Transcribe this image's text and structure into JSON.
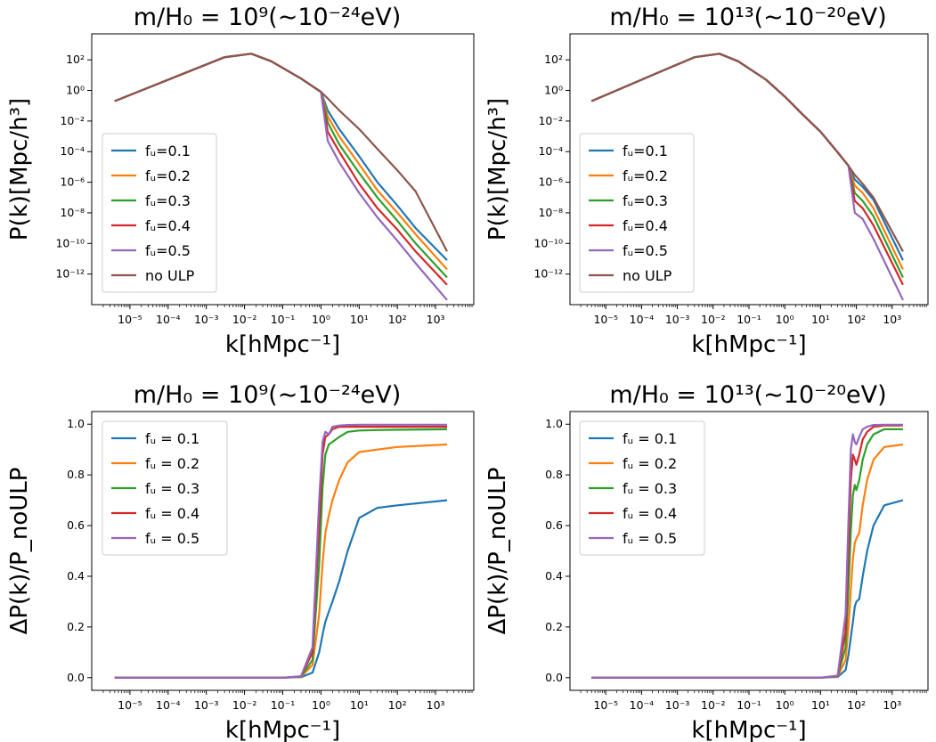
{
  "colors": {
    "fu_0.1": "#1f77b4",
    "fu_0.2": "#ff7f0e",
    "fu_0.3": "#2ca02c",
    "fu_0.4": "#d62728",
    "fu_0.5": "#9467bd",
    "no_ulp": "#8c564b"
  },
  "chart_data": [
    {
      "type": "line",
      "title": "m/H₀ = 10⁹(∼10⁻²⁴eV)",
      "xlabel": "k[hMpc⁻¹]",
      "ylabel": "P(k)[Mpc/h³]",
      "xscale": "log",
      "yscale": "log",
      "xlim": [
        1e-06,
        10000
      ],
      "ylim": [
        1e-14,
        5000
      ],
      "xticks": [
        "10⁻⁵",
        "10⁻⁴",
        "10⁻³",
        "10⁻²",
        "10⁻¹",
        "10⁰",
        "10¹",
        "10²",
        "10³"
      ],
      "yticks": [
        "10⁻¹²",
        "10⁻¹⁰",
        "10⁻⁸",
        "10⁻⁶",
        "10⁻⁴",
        "10⁻²",
        "10⁰",
        "10²"
      ],
      "legend_position": "center-left",
      "x": [
        4e-06,
        3e-05,
        0.0003,
        0.003,
        0.015,
        0.05,
        0.3,
        1,
        1.5,
        3,
        10,
        30,
        100,
        300,
        2000
      ],
      "series": [
        {
          "name": "fᵤ=0.1",
          "color_key": "fu_0.1",
          "values": [
            0.2,
            1.5,
            15,
            150,
            250,
            80,
            6,
            0.8,
            0.05,
            0.003,
            5e-05,
            1e-06,
            3e-08,
            1e-09,
            8e-12
          ]
        },
        {
          "name": "fᵤ=0.2",
          "color_key": "fu_0.2",
          "values": [
            0.2,
            1.5,
            15,
            150,
            250,
            80,
            6,
            0.8,
            0.02,
            0.001,
            1.5e-05,
            3e-07,
            1e-08,
            4e-10,
            2e-12
          ]
        },
        {
          "name": "fᵤ=0.3",
          "color_key": "fu_0.3",
          "values": [
            0.2,
            1.5,
            15,
            150,
            250,
            80,
            6,
            0.8,
            0.008,
            0.0003,
            4e-06,
            1e-07,
            3e-09,
            1e-10,
            6e-13
          ]
        },
        {
          "name": "fᵤ=0.4",
          "color_key": "fu_0.4",
          "values": [
            0.2,
            1.5,
            15,
            150,
            250,
            80,
            6,
            0.8,
            0.002,
            0.0001,
            8e-07,
            2e-08,
            8e-10,
            3e-11,
            2e-13
          ]
        },
        {
          "name": "fᵤ=0.5",
          "color_key": "fu_0.5",
          "values": [
            0.2,
            1.5,
            15,
            150,
            250,
            80,
            6,
            0.8,
            0.0005,
            2e-05,
            2e-07,
            5e-09,
            1.5e-10,
            5e-12,
            2e-14
          ]
        },
        {
          "name": "no ULP",
          "color_key": "no_ulp",
          "values": [
            0.2,
            1.5,
            15,
            150,
            250,
            80,
            6,
            0.8,
            0.3,
            0.05,
            0.003,
            0.00015,
            6e-06,
            2.5e-07,
            3e-11
          ]
        }
      ]
    },
    {
      "type": "line",
      "title": "m/H₀ = 10¹³(∼10⁻²⁰eV)",
      "xlabel": "k[hMpc⁻¹]",
      "ylabel": "P(k)[Mpc/h³]",
      "xscale": "log",
      "yscale": "log",
      "xlim": [
        1e-06,
        10000
      ],
      "ylim": [
        1e-14,
        5000
      ],
      "xticks": [
        "10⁻⁵",
        "10⁻⁴",
        "10⁻³",
        "10⁻²",
        "10⁻¹",
        "10⁰",
        "10¹",
        "10²",
        "10³"
      ],
      "yticks": [
        "10⁻¹²",
        "10⁻¹⁰",
        "10⁻⁸",
        "10⁻⁶",
        "10⁻⁴",
        "10⁻²",
        "10⁰",
        "10²"
      ],
      "legend_position": "center-left",
      "x": [
        4e-06,
        3e-05,
        0.0003,
        0.003,
        0.015,
        0.05,
        0.3,
        1,
        3,
        10,
        30,
        60,
        90,
        150,
        300,
        2000
      ],
      "series": [
        {
          "name": "fᵤ=0.1",
          "color_key": "fu_0.1",
          "values": [
            0.2,
            1.5,
            15,
            150,
            250,
            80,
            5,
            0.4,
            0.03,
            0.002,
            9e-05,
            1.2e-05,
            1.5e-06,
            5e-07,
            7e-08,
            8e-12
          ]
        },
        {
          "name": "fᵤ=0.2",
          "color_key": "fu_0.2",
          "values": [
            0.2,
            1.5,
            15,
            150,
            250,
            80,
            5,
            0.4,
            0.03,
            0.002,
            9e-05,
            1.2e-05,
            6e-07,
            2e-07,
            2e-08,
            2e-12
          ]
        },
        {
          "name": "fᵤ=0.3",
          "color_key": "fu_0.3",
          "values": [
            0.2,
            1.5,
            15,
            150,
            250,
            80,
            5,
            0.4,
            0.03,
            0.002,
            9e-05,
            1.2e-05,
            2e-07,
            6e-08,
            6e-09,
            6e-13
          ]
        },
        {
          "name": "fᵤ=0.4",
          "color_key": "fu_0.4",
          "values": [
            0.2,
            1.5,
            15,
            150,
            250,
            80,
            5,
            0.4,
            0.03,
            0.002,
            9e-05,
            1.2e-05,
            6e-08,
            2e-08,
            1.5e-09,
            2e-13
          ]
        },
        {
          "name": "fᵤ=0.5",
          "color_key": "fu_0.5",
          "values": [
            0.2,
            1.5,
            15,
            150,
            250,
            80,
            5,
            0.4,
            0.03,
            0.002,
            9e-05,
            1.2e-05,
            1e-08,
            4e-09,
            2e-10,
            2e-14
          ]
        },
        {
          "name": "no ULP",
          "color_key": "no_ulp",
          "values": [
            0.2,
            1.5,
            15,
            150,
            250,
            80,
            5,
            0.4,
            0.03,
            0.002,
            9e-05,
            1.2e-05,
            3e-06,
            8e-07,
            1e-07,
            3e-11
          ]
        }
      ]
    },
    {
      "type": "line",
      "title": "m/H₀ = 10⁹(∼10⁻²⁴eV)",
      "xlabel": "k[hMpc⁻¹]",
      "ylabel": "ΔP(k)/P_noULP",
      "xscale": "log",
      "yscale": "linear",
      "xlim": [
        1e-06,
        10000
      ],
      "ylim": [
        -0.05,
        1.05
      ],
      "xticks": [
        "10⁻⁵",
        "10⁻⁴",
        "10⁻³",
        "10⁻²",
        "10⁻¹",
        "10⁰",
        "10¹",
        "10²",
        "10³"
      ],
      "yticks": [
        "0.0",
        "0.2",
        "0.4",
        "0.6",
        "0.8",
        "1.0"
      ],
      "legend_position": "upper-left",
      "x": [
        4e-06,
        0.01,
        0.1,
        0.3,
        0.6,
        0.9,
        1.1,
        1.3,
        1.6,
        2,
        3,
        5,
        10,
        30,
        100,
        2000
      ],
      "series": [
        {
          "name": "fᵤ = 0.1",
          "color_key": "fu_0.1",
          "values": [
            0,
            0,
            0,
            0.002,
            0.02,
            0.1,
            0.17,
            0.22,
            0.26,
            0.3,
            0.38,
            0.5,
            0.63,
            0.67,
            0.68,
            0.7
          ]
        },
        {
          "name": "fᵤ = 0.2",
          "color_key": "fu_0.2",
          "values": [
            0,
            0,
            0,
            0.003,
            0.05,
            0.25,
            0.45,
            0.57,
            0.64,
            0.7,
            0.78,
            0.85,
            0.89,
            0.9,
            0.91,
            0.92
          ]
        },
        {
          "name": "fᵤ = 0.3",
          "color_key": "fu_0.3",
          "values": [
            0,
            0,
            0,
            0.004,
            0.07,
            0.45,
            0.75,
            0.88,
            0.92,
            0.93,
            0.95,
            0.97,
            0.975,
            0.977,
            0.978,
            0.98
          ]
        },
        {
          "name": "fᵤ = 0.4",
          "color_key": "fu_0.4",
          "values": [
            0,
            0,
            0,
            0.005,
            0.1,
            0.6,
            0.88,
            0.95,
            0.96,
            0.98,
            0.99,
            0.99,
            0.99,
            0.99,
            0.99,
            0.99
          ]
        },
        {
          "name": "fᵤ = 0.5",
          "color_key": "fu_0.5",
          "values": [
            0,
            0,
            0,
            0.006,
            0.12,
            0.7,
            0.93,
            0.97,
            0.96,
            0.99,
            0.995,
            0.997,
            0.998,
            0.998,
            0.998,
            0.998
          ]
        }
      ]
    },
    {
      "type": "line",
      "title": "m/H₀ = 10¹³(∼10⁻²⁰eV)",
      "xlabel": "k[hMpc⁻¹]",
      "ylabel": "ΔP(k)/P_noULP",
      "xscale": "log",
      "yscale": "linear",
      "xlim": [
        1e-06,
        10000
      ],
      "ylim": [
        -0.05,
        1.05
      ],
      "xticks": [
        "10⁻⁵",
        "10⁻⁴",
        "10⁻³",
        "10⁻²",
        "10⁻¹",
        "10⁰",
        "10¹",
        "10²",
        "10³"
      ],
      "yticks": [
        "0.0",
        "0.2",
        "0.4",
        "0.6",
        "0.8",
        "1.0"
      ],
      "legend_position": "upper-left",
      "x": [
        4e-06,
        1,
        10,
        30,
        50,
        60,
        70,
        80,
        90,
        100,
        120,
        150,
        200,
        300,
        600,
        2000
      ],
      "series": [
        {
          "name": "fᵤ = 0.1",
          "color_key": "fu_0.1",
          "values": [
            0,
            0,
            0,
            0.003,
            0.03,
            0.09,
            0.16,
            0.22,
            0.28,
            0.3,
            0.31,
            0.4,
            0.5,
            0.6,
            0.68,
            0.7
          ]
        },
        {
          "name": "fᵤ = 0.2",
          "color_key": "fu_0.2",
          "values": [
            0,
            0,
            0,
            0.005,
            0.07,
            0.2,
            0.35,
            0.47,
            0.53,
            0.55,
            0.57,
            0.68,
            0.78,
            0.86,
            0.91,
            0.92
          ]
        },
        {
          "name": "fᵤ = 0.3",
          "color_key": "fu_0.3",
          "values": [
            0,
            0,
            0,
            0.006,
            0.12,
            0.35,
            0.58,
            0.72,
            0.76,
            0.74,
            0.78,
            0.86,
            0.92,
            0.96,
            0.98,
            0.98
          ]
        },
        {
          "name": "fᵤ = 0.4",
          "color_key": "fu_0.4",
          "values": [
            0,
            0,
            0,
            0.007,
            0.18,
            0.5,
            0.78,
            0.88,
            0.86,
            0.84,
            0.88,
            0.94,
            0.97,
            0.99,
            0.995,
            0.995
          ]
        },
        {
          "name": "fᵤ = 0.5",
          "color_key": "fu_0.5",
          "values": [
            0,
            0,
            0,
            0.008,
            0.25,
            0.62,
            0.9,
            0.96,
            0.93,
            0.92,
            0.95,
            0.98,
            0.99,
            0.997,
            0.998,
            0.998
          ]
        }
      ]
    }
  ]
}
